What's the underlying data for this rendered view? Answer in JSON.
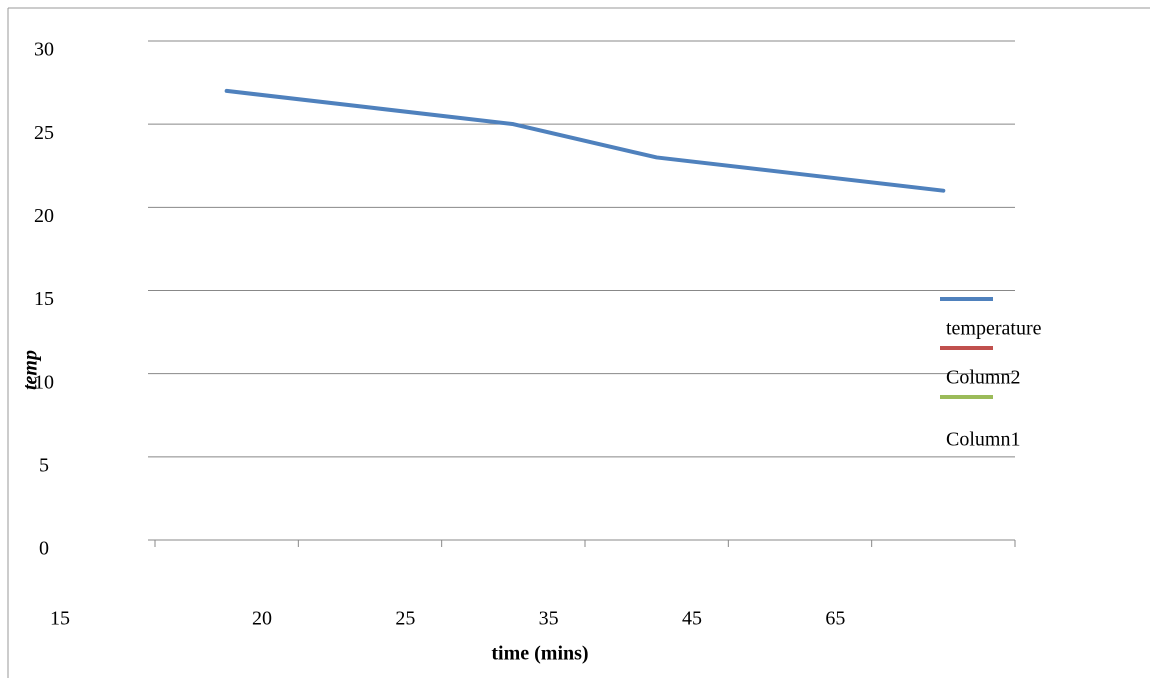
{
  "chart_data": {
    "type": "line",
    "x_label": "time (mins)",
    "y_label": "temp",
    "categories": [
      "15",
      "20",
      "25",
      "35",
      "45",
      "65"
    ],
    "series": [
      {
        "name": "temperature",
        "color": "#4f81bd",
        "values": [
          27,
          26,
          25,
          23,
          22,
          21
        ]
      },
      {
        "name": "Column2",
        "color": "#c0504d",
        "values": [
          null,
          null,
          null,
          null,
          null,
          null
        ]
      },
      {
        "name": "Column1",
        "color": "#9bbb59",
        "values": [
          null,
          null,
          null,
          null,
          null,
          null
        ]
      }
    ],
    "ylim": [
      0,
      30
    ],
    "yticks": [
      0,
      5,
      10,
      15,
      20,
      25,
      30
    ],
    "grid": true,
    "legend": "right"
  }
}
